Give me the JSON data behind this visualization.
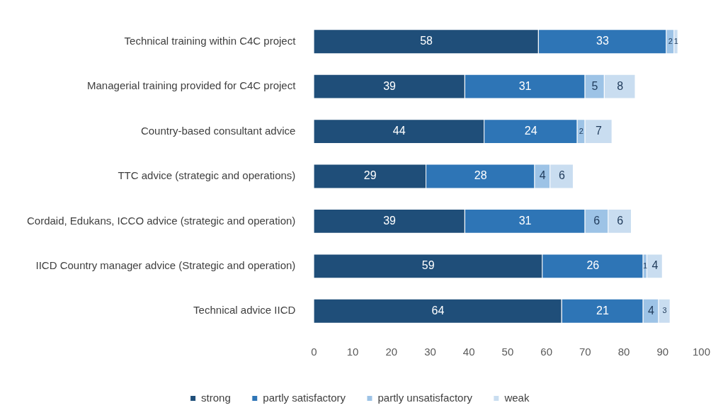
{
  "chart_data": {
    "type": "bar",
    "orientation": "horizontal",
    "stacked": true,
    "categories": [
      "Technical training within C4C project",
      "Managerial training provided for C4C project",
      "Country-based consultant advice",
      "TTC advice (strategic and operations)",
      "Cordaid, Edukans, ICCO advice (strategic and operation)",
      "IICD Country manager advice (Strategic and operation)",
      "Technical advice IICD"
    ],
    "series": [
      {
        "name": "strong",
        "color": "#1f4e79",
        "values": [
          58,
          39,
          44,
          29,
          39,
          59,
          64
        ]
      },
      {
        "name": "partly satisfactory",
        "color": "#2e75b6",
        "values": [
          33,
          31,
          24,
          28,
          31,
          26,
          21
        ]
      },
      {
        "name": "partly unsatisfactory",
        "color": "#9dc3e6",
        "values": [
          2,
          5,
          2,
          4,
          6,
          1,
          4
        ]
      },
      {
        "name": "weak",
        "color": "#c9ddf0",
        "values": [
          1,
          8,
          7,
          6,
          6,
          4,
          3
        ]
      }
    ],
    "xlim": [
      0,
      100
    ],
    "xticks": [
      0,
      10,
      20,
      30,
      40,
      50,
      60,
      70,
      80,
      90,
      100
    ],
    "grid": false,
    "legend": "bottom",
    "data_labels": true
  }
}
